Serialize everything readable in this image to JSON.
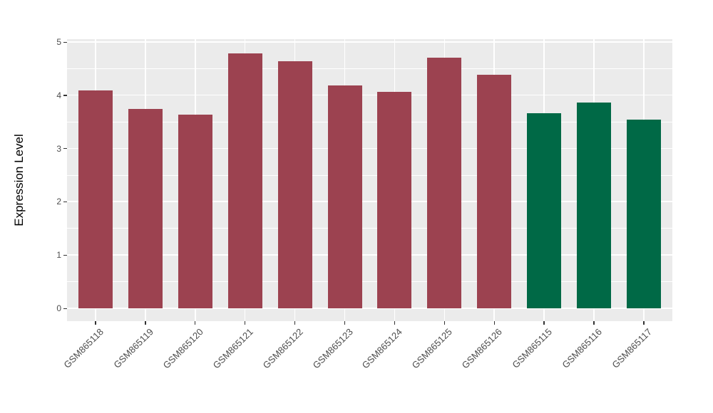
{
  "chart_data": {
    "type": "bar",
    "title": "",
    "xlabel": "",
    "ylabel": "Expression Level",
    "categories": [
      "GSM865118",
      "GSM865119",
      "GSM865120",
      "GSM865121",
      "GSM865122",
      "GSM865123",
      "GSM865124",
      "GSM865125",
      "GSM865126",
      "GSM865115",
      "GSM865116",
      "GSM865117"
    ],
    "values": [
      4.09,
      3.75,
      3.63,
      4.79,
      4.64,
      4.18,
      4.07,
      4.7,
      4.38,
      3.66,
      3.87,
      3.54
    ],
    "bar_groups": [
      "red",
      "red",
      "red",
      "red",
      "red",
      "red",
      "red",
      "red",
      "red",
      "green",
      "green",
      "green"
    ],
    "group_colors": {
      "red": "#9C4250",
      "green": "#006946"
    },
    "y_ticks": [
      0,
      1,
      2,
      3,
      4,
      5
    ],
    "y_minor_ticks": [
      0.5,
      1.5,
      2.5,
      3.5,
      4.5
    ],
    "ylim": [
      0,
      5.25
    ],
    "grid": "on",
    "legend": "none",
    "x_tick_angle": 45,
    "colors": {
      "panel_bg": "#EBEBEB",
      "grid": "#FFFFFF",
      "tick_mark": "#333333",
      "tick_text": "#4D4D4D",
      "axis_title": "#000000"
    }
  }
}
